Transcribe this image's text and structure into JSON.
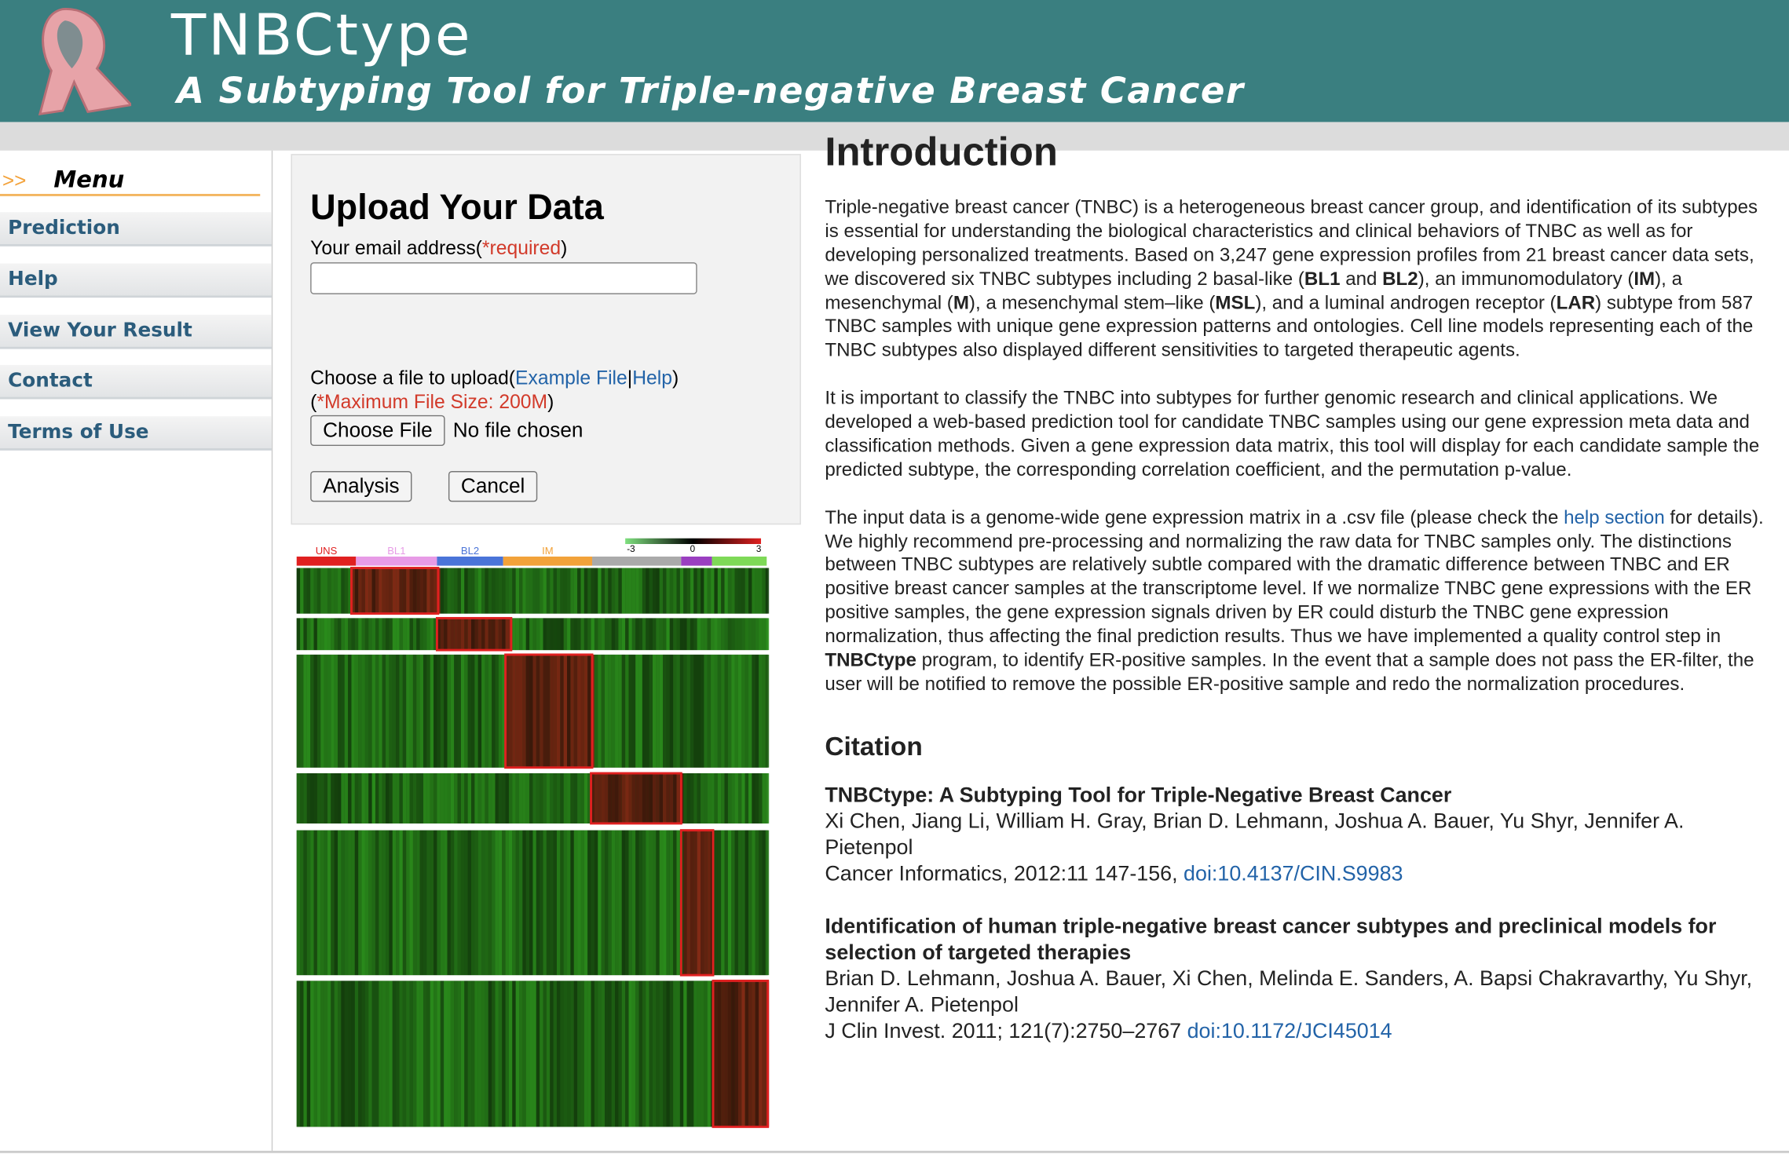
{
  "header": {
    "title": "TNBCtype",
    "subtitle": "A Subtyping Tool for Triple-negative Breast Cancer"
  },
  "menu": {
    "title": "Menu",
    "marker": ">>",
    "items": [
      "Prediction",
      "Help",
      "View Your Result",
      "Contact",
      "Terms of Use"
    ]
  },
  "upload": {
    "title": "Upload Your Data",
    "email_label": "Your email address(",
    "required": "*required",
    "email_close": ")",
    "file_label": "Choose a file to upload(",
    "example_file": "Example File",
    "separator": "|",
    "help": "Help",
    "file_close": ")",
    "max_open": "(",
    "max_size": "*Maximum File Size: 200M",
    "max_close": ")",
    "choose_file": "Choose File",
    "no_file": "No file chosen",
    "analysis": "Analysis",
    "cancel": "Cancel"
  },
  "heatmap": {
    "groups": [
      "UNS",
      "BL1",
      "BL2",
      "IM"
    ],
    "scale_ticks": [
      "-3",
      "0",
      "3"
    ]
  },
  "intro": {
    "title": "Introduction",
    "paragraphs": [
      [
        "Triple-negative breast cancer (TNBC) is a heterogeneous breast cancer group, and identification of its subtypes is essential for understanding the biological characteristics and clinical behaviors of TNBC as well as for developing personalized treatments. Based on 3,247 gene expression profiles from 21 breast cancer data sets, we discovered six TNBC subtypes including 2 basal-like (",
        "BL1",
        " and ",
        "BL2",
        "), an immunomodulatory (",
        "IM",
        "), a mesenchymal (",
        "M",
        "), a mesenchymal stem–like (",
        "MSL",
        "), and a luminal androgen receptor (",
        "LAR",
        ") subtype from 587 TNBC samples with unique gene expression patterns and ontologies. Cell line models representing each of the TNBC subtypes also displayed different sensitivities to targeted therapeutic agents."
      ],
      [
        "It is important to classify the TNBC into subtypes for further genomic research and clinical applications. We developed a web-based prediction tool for candidate TNBC samples using our gene expression meta data and classification methods. Given a gene expression data matrix, this tool will display for each candidate sample the predicted subtype, the corresponding correlation coefficient, and the permutation p-value."
      ],
      [
        "The input data is a genome-wide gene expression matrix in a .csv file (please check the ",
        "help section",
        " for details). We highly recommend pre-processing and normalizing the raw data for TNBC samples only. The distinctions between TNBC subtypes are relatively subtle compared with the dramatic difference between TNBC and ER positive breast cancer samples at the transcriptome level. If we normalize TNBC gene expressions with the ER positive samples, the gene expression signals driven by ER could disturb the TNBC gene expression normalization, thus affecting the final prediction results. Thus we have implemented a quality control step in ",
        "TNBCtype",
        " program, to identify ER-positive samples. In the event that a sample does not pass the ER-filter, the user will be notified to remove the possible ER-positive sample and redo the normalization procedures."
      ]
    ]
  },
  "citation": {
    "title": "Citation",
    "items": [
      {
        "title": "TNBCtype: A Subtyping Tool for Triple-Negative Breast Cancer",
        "authors": "Xi Chen, Jiang Li, William H. Gray, Brian D. Lehmann, Joshua A. Bauer, Yu Shyr, Jennifer A. Pietenpol",
        "journal": "Cancer Informatics, 2012:11 147-156, ",
        "doi": "doi:10.4137/CIN.S9983"
      },
      {
        "title": "Identification of human triple-negative breast cancer subtypes and preclinical models for selection of targeted therapies",
        "authors": "Brian D. Lehmann, Joshua A. Bauer, Xi Chen, Melinda E. Sanders, A. Bapsi Chakravarthy, Yu Shyr, Jennifer A. Pietenpol",
        "journal": "J Clin Invest. 2011; 121(7):2750–2767 ",
        "doi": "doi:10.1172/JCI45014"
      }
    ]
  }
}
